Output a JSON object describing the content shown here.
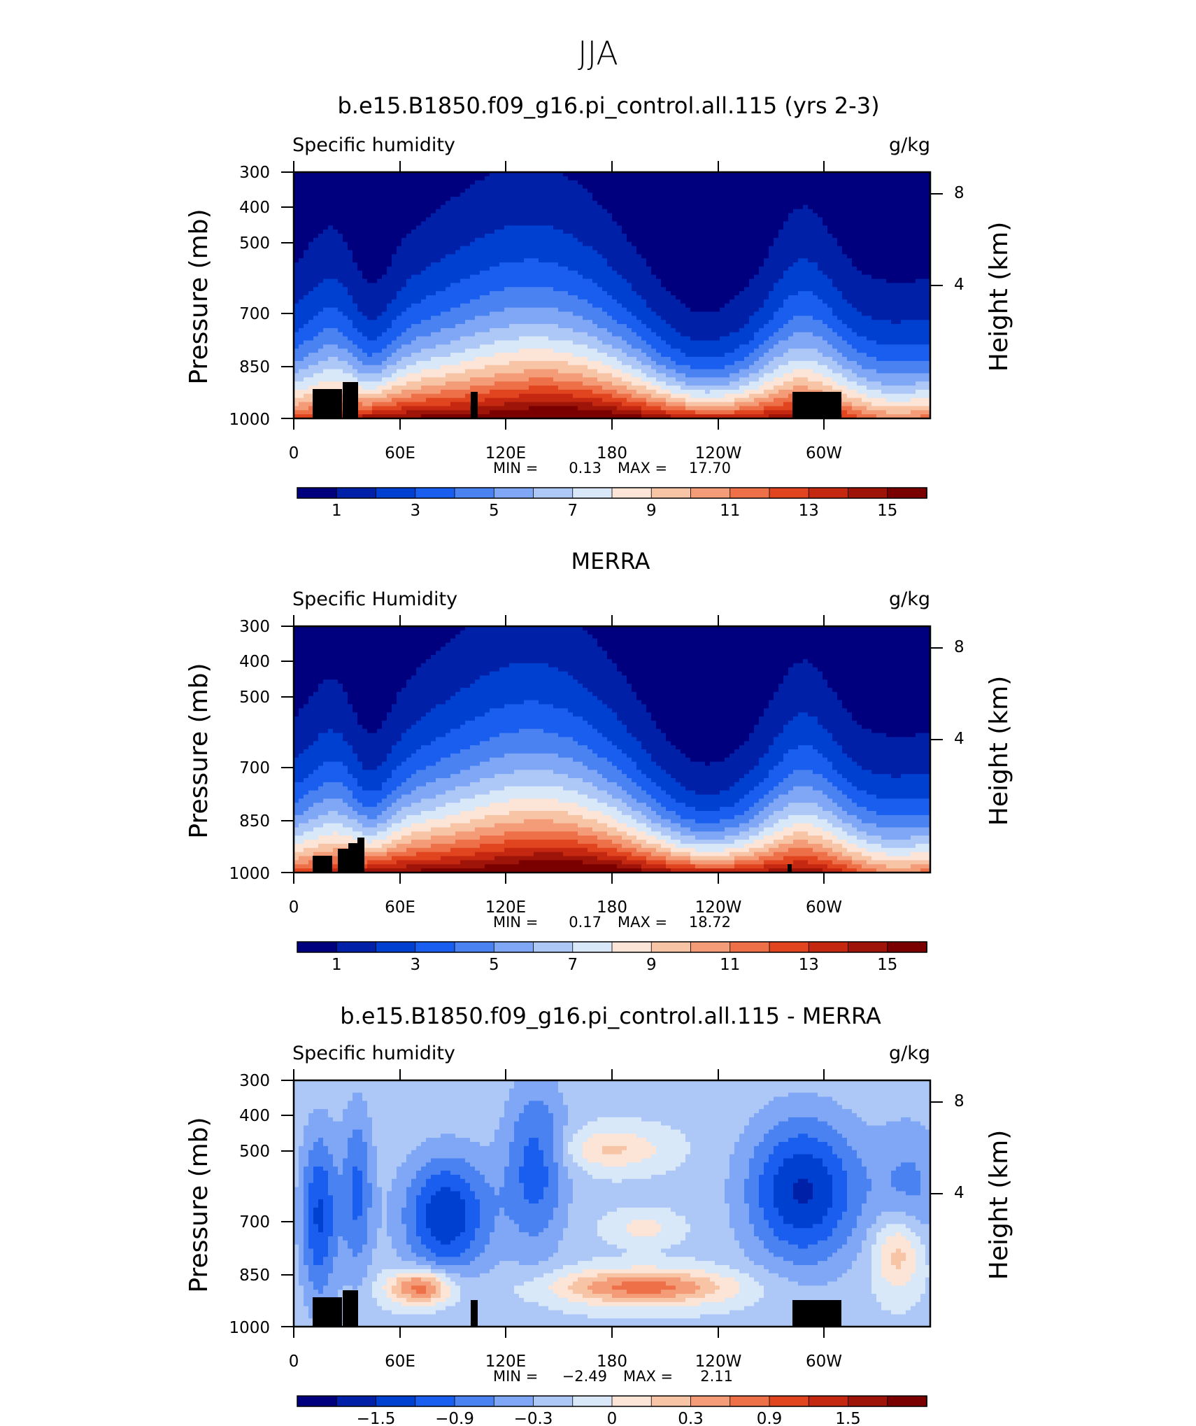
{
  "figure": {
    "title": "JJA"
  },
  "chart_data": [
    {
      "type": "heatmap",
      "title": "b.e15.B1850.f09_g16.pi_control.all.115 (yrs 2-3)",
      "left_label": "Specific humidity",
      "right_label": "g/kg",
      "ylabel": "Pressure (mb)",
      "ylabel_right": "Height (km)",
      "x_ticks": [
        "0",
        "60E",
        "120E",
        "180",
        "120W",
        "60W"
      ],
      "y_ticks": [
        "300",
        "400",
        "500",
        "700",
        "850",
        "1000"
      ],
      "y_right_ticks": [
        "8",
        "4"
      ],
      "stats": {
        "min_label": "MIN =",
        "min": "0.13",
        "max_label": "MAX =",
        "max": "17.70"
      },
      "colorbar": {
        "colors": [
          "#00007f",
          "#0020a8",
          "#0040d0",
          "#1a5ef0",
          "#4a82f2",
          "#7fa7f5",
          "#adc8f7",
          "#d9e8f9",
          "#fce4d6",
          "#f8c4a6",
          "#f49c78",
          "#ee7048",
          "#e04520",
          "#c42810",
          "#9f1408",
          "#7a0000"
        ],
        "labels": [
          "1",
          "3",
          "5",
          "7",
          "9",
          "11",
          "13",
          "15"
        ]
      }
    },
    {
      "type": "heatmap",
      "title": "MERRA",
      "left_label": "Specific Humidity",
      "right_label": "g/kg",
      "ylabel": "Pressure (mb)",
      "ylabel_right": "Height (km)",
      "x_ticks": [
        "0",
        "60E",
        "120E",
        "180",
        "120W",
        "60W"
      ],
      "y_ticks": [
        "300",
        "400",
        "500",
        "700",
        "850",
        "1000"
      ],
      "y_right_ticks": [
        "8",
        "4"
      ],
      "stats": {
        "min_label": "MIN =",
        "min": "0.17",
        "max_label": "MAX =",
        "max": "18.72"
      },
      "colorbar": {
        "colors": [
          "#00007f",
          "#0020a8",
          "#0040d0",
          "#1a5ef0",
          "#4a82f2",
          "#7fa7f5",
          "#adc8f7",
          "#d9e8f9",
          "#fce4d6",
          "#f8c4a6",
          "#f49c78",
          "#ee7048",
          "#e04520",
          "#c42810",
          "#9f1408",
          "#7a0000"
        ],
        "labels": [
          "1",
          "3",
          "5",
          "7",
          "9",
          "11",
          "13",
          "15"
        ]
      }
    },
    {
      "type": "heatmap",
      "title": "b.e15.B1850.f09_g16.pi_control.all.115 - MERRA",
      "left_label": "Specific humidity",
      "right_label": "g/kg",
      "ylabel": "Pressure (mb)",
      "ylabel_right": "Height (km)",
      "x_ticks": [
        "0",
        "60E",
        "120E",
        "180",
        "120W",
        "60W"
      ],
      "y_ticks": [
        "300",
        "400",
        "500",
        "700",
        "850",
        "1000"
      ],
      "y_right_ticks": [
        "8",
        "4"
      ],
      "stats": {
        "min_label": "MIN =",
        "min": "−2.49",
        "max_label": "MAX =",
        "max": "2.11"
      },
      "colorbar": {
        "colors": [
          "#00007f",
          "#0020a8",
          "#0040d0",
          "#1a5ef0",
          "#4a82f2",
          "#7fa7f5",
          "#adc8f7",
          "#d9e8f9",
          "#fce4d6",
          "#f8c4a6",
          "#f49c78",
          "#ee7048",
          "#e04520",
          "#c42810",
          "#9f1408",
          "#7a0000"
        ],
        "labels": [
          "−1.5",
          "−0.9",
          "−0.3",
          "0",
          "0.3",
          "0.9",
          "1.5"
        ]
      }
    }
  ]
}
